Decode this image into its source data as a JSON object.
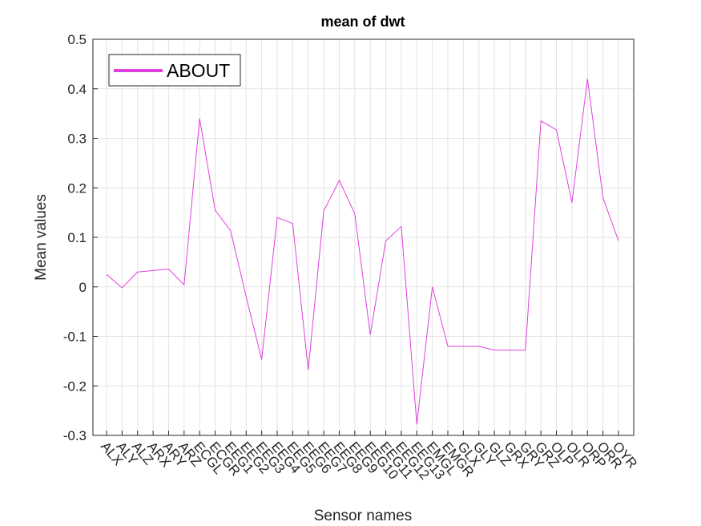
{
  "chart_data": {
    "type": "line",
    "title": "mean of dwt",
    "xlabel": "Sensor names",
    "ylabel": "Mean values",
    "categories": [
      "ALX",
      "ALY",
      "ALZ",
      "ARX",
      "ARY",
      "ARZ",
      "ECGL",
      "ECGR",
      "EEG1",
      "EEG2",
      "EEG3",
      "EEG4",
      "EEG5",
      "EEG6",
      "EEG7",
      "EEG8",
      "EEG9",
      "EEG10",
      "EEG11",
      "EEG12",
      "EEG13",
      "EMGL",
      "EMGR",
      "GLX",
      "GLY",
      "GLZ",
      "GRX",
      "GRY",
      "GRZ",
      "OLP",
      "OLR",
      "ORP",
      "ORR",
      "OYR"
    ],
    "series": [
      {
        "name": "ABOUT",
        "color": "#e040e0",
        "values": [
          0.025,
          -0.002,
          0.03,
          0.033,
          0.036,
          0.004,
          0.34,
          0.155,
          0.113,
          -0.02,
          -0.147,
          0.14,
          0.128,
          -0.168,
          0.153,
          0.215,
          0.148,
          -0.097,
          0.093,
          0.122,
          -0.278,
          0.0,
          -0.12,
          -0.12,
          -0.12,
          -0.128,
          -0.128,
          -0.128,
          0.335,
          0.317,
          0.17,
          0.42,
          0.18,
          0.093
        ]
      }
    ],
    "ylim": [
      -0.3,
      0.5
    ],
    "yticks": [
      -0.3,
      -0.2,
      -0.1,
      0,
      0.1,
      0.2,
      0.3,
      0.4,
      0.5
    ],
    "grid": true,
    "legend": "upper left"
  }
}
